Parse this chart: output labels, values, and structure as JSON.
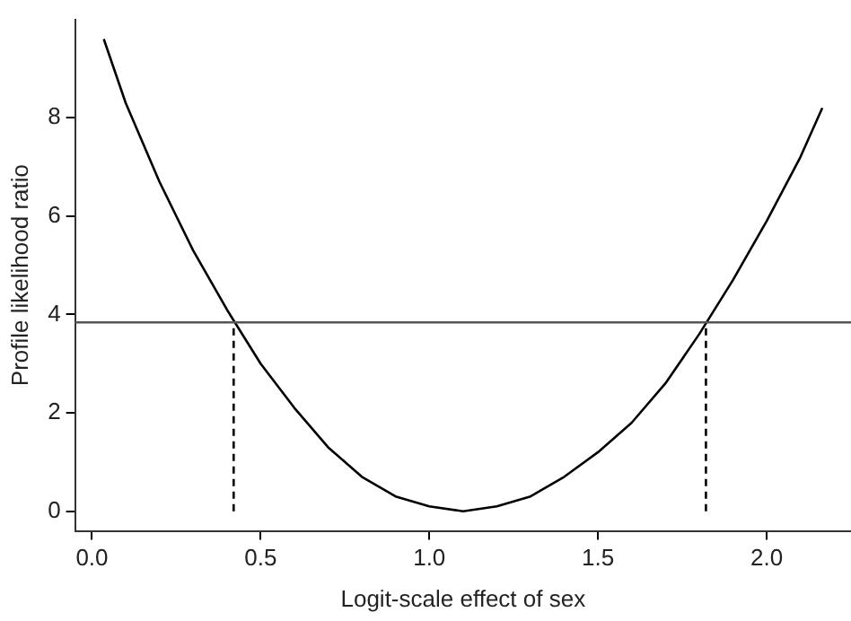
{
  "chart_data": {
    "type": "line",
    "xlabel": "Logit-scale effect of sex",
    "ylabel": "Profile likelihood ratio",
    "xlim": [
      -0.05,
      2.25
    ],
    "xticks": [
      {
        "value": 0,
        "label": "0.0"
      },
      0.5,
      {
        "value": 1,
        "label": "1.0"
      },
      1.5,
      {
        "value": 2,
        "label": "2.0"
      }
    ],
    "ylim": [
      -0.4,
      10
    ],
    "yticks": [
      0,
      2,
      4,
      6,
      8
    ],
    "grid": false,
    "legend": false,
    "marker": "none",
    "series": [
      {
        "color": "#000000",
        "line_style": "solid",
        "x": [
          0.035,
          0.1,
          0.2,
          0.3,
          0.4,
          0.5,
          0.6,
          0.7,
          0.8,
          0.9,
          1.0,
          1.1,
          1.2,
          1.3,
          1.4,
          1.5,
          1.6,
          1.7,
          1.8,
          1.9,
          2.0,
          2.1,
          2.165
        ],
        "values": [
          9.6,
          8.3,
          6.7,
          5.3,
          4.1,
          3.0,
          2.1,
          1.3,
          0.7,
          0.3,
          0.1,
          0.0,
          0.1,
          0.3,
          0.7,
          1.2,
          1.8,
          2.6,
          3.6,
          4.7,
          5.9,
          7.2,
          8.2
        ]
      },
      {
        "type": "line",
        "color": "#000000",
        "line_style": "dashed",
        "x": [
          0.42,
          0.42
        ],
        "values": [
          0,
          3.84
        ]
      },
      {
        "type": "line",
        "color": "#000000",
        "line_style": "dashed",
        "x": [
          1.82,
          1.82
        ],
        "values": [
          0,
          3.84
        ]
      }
    ],
    "ref_lines": [
      {
        "axis": "y",
        "value": 3.84,
        "color": "#555555"
      }
    ]
  }
}
